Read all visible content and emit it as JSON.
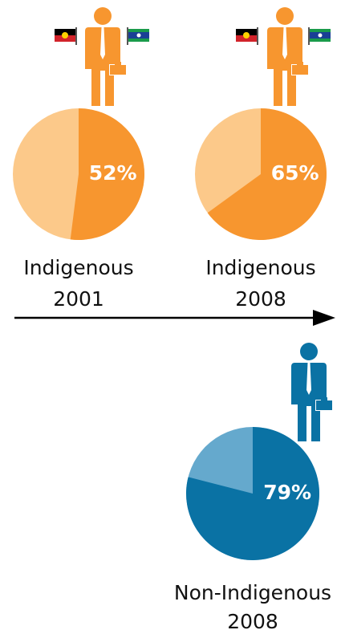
{
  "chart_data": [
    {
      "type": "pie",
      "title": "Indigenous",
      "subtitle": "2001",
      "values": [
        52
      ],
      "value_labels": [
        "52%"
      ],
      "colors": [
        "#f7962f"
      ],
      "background_color": "#fcc98a"
    },
    {
      "type": "pie",
      "title": "Indigenous",
      "subtitle": "2008",
      "values": [
        65
      ],
      "value_labels": [
        "65%"
      ],
      "colors": [
        "#f7962f"
      ],
      "background_color": "#fcc98a"
    },
    {
      "type": "pie",
      "title": "Non-Indigenous",
      "subtitle": "2008",
      "values": [
        79
      ],
      "value_labels": [
        "79%"
      ],
      "colors": [
        "#0a72a4"
      ],
      "background_color": "#65a9cd"
    }
  ]
}
